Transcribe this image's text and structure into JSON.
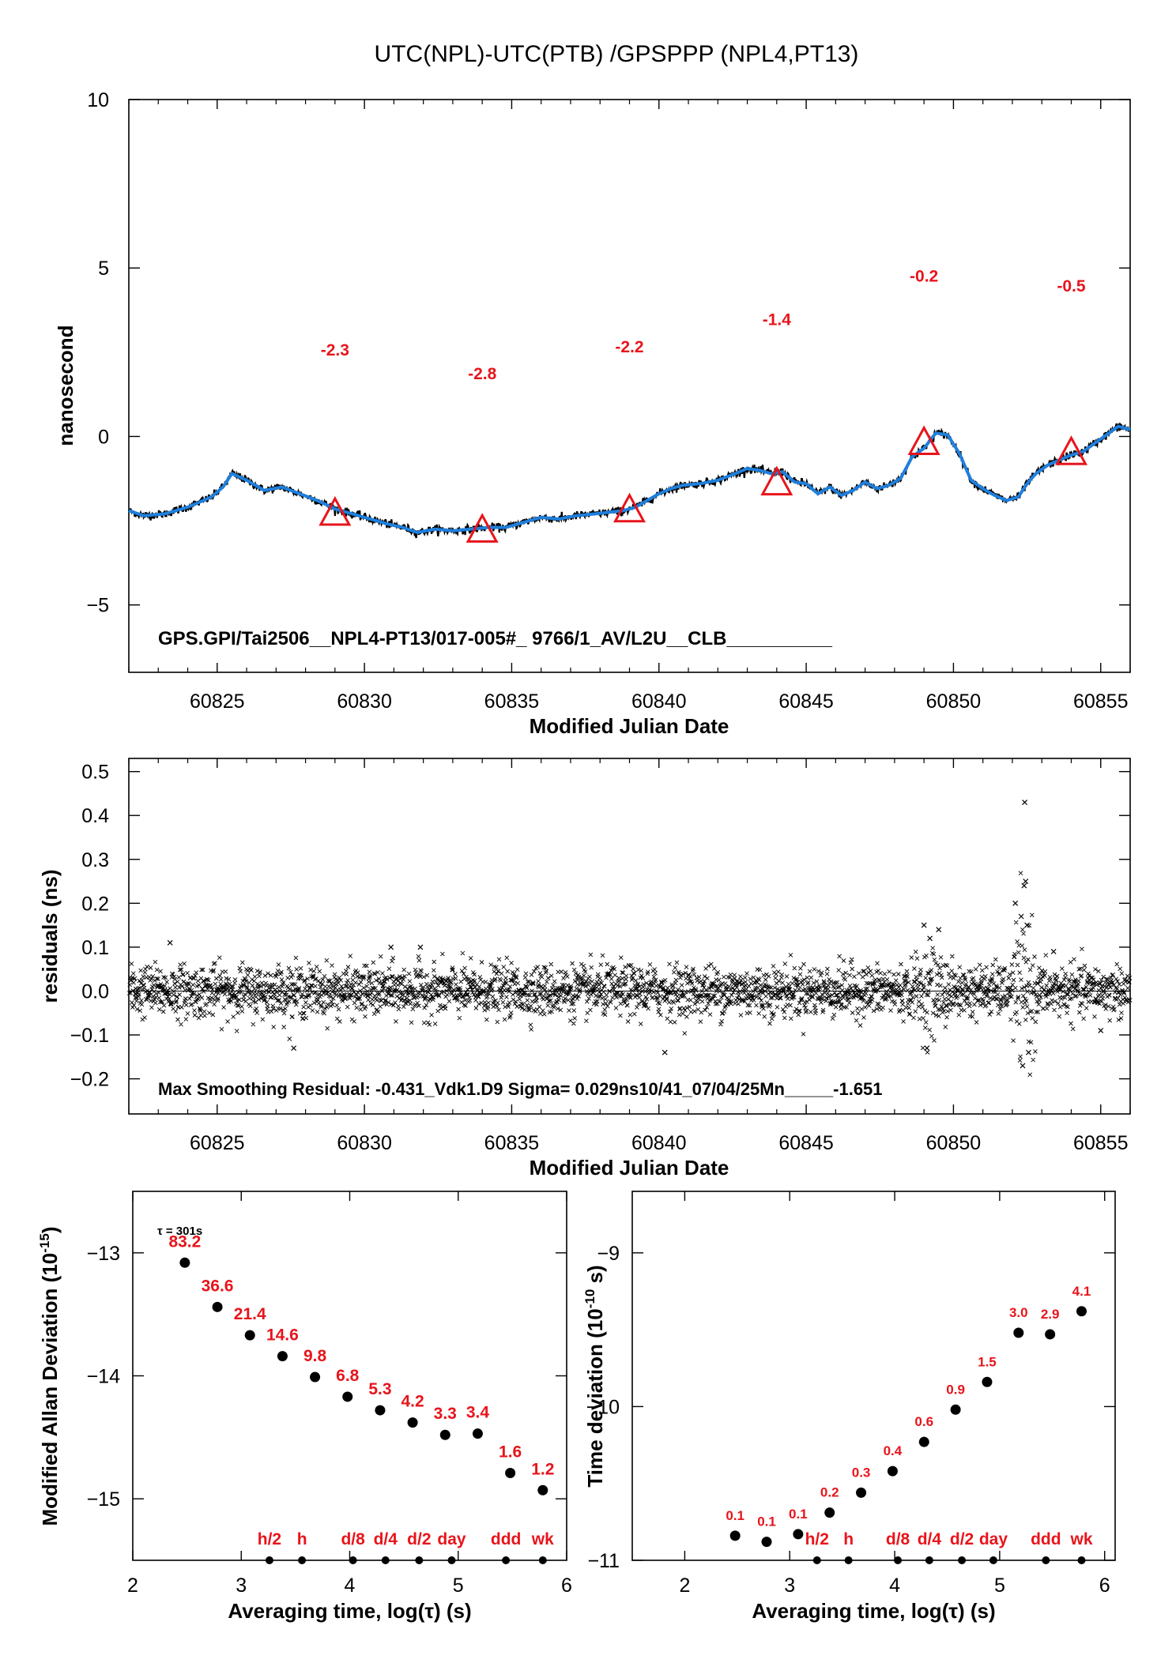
{
  "title": "UTC(NPL)-UTC(PTB)  /GPSPPP  (NPL4,PT13)",
  "chart_data": [
    {
      "id": "top",
      "type": "line",
      "xlabel": "Modified Julian Date",
      "ylabel": "nanosecond",
      "xlim": [
        60822,
        60856
      ],
      "ylim": [
        -7,
        10
      ],
      "xticks": [
        60825,
        60830,
        60835,
        60840,
        60845,
        60850,
        60855
      ],
      "yticks": [
        -5,
        0,
        5,
        10
      ],
      "ytick_labels": [
        "−5",
        "0",
        "5",
        "10"
      ],
      "series": [
        {
          "x": [
            60822.0,
            60822.5,
            60823.2,
            60824.0,
            60824.8,
            60825.2,
            60825.5,
            60826.0,
            60826.6,
            60827.2,
            60827.8,
            60828.4,
            60829.0,
            60829.6,
            60830.2,
            60830.8,
            60831.3,
            60831.8,
            60832.4,
            60833.0,
            60833.6,
            60834.2,
            60834.8,
            60835.4,
            60836.0,
            60836.6,
            60837.2,
            60837.8,
            60838.3,
            60838.8,
            60839.2,
            60839.6,
            60840.0,
            60840.4,
            60840.8,
            60841.4,
            60842.0,
            60842.6,
            60843.0,
            60843.4,
            60843.8,
            60844.2,
            60844.6,
            60845.0,
            60845.4,
            60845.8,
            60846.2,
            60846.6,
            60847.0,
            60847.4,
            60847.8,
            60848.2,
            60848.6,
            60849.0,
            60849.4,
            60849.8,
            60850.2,
            60850.6,
            60851.0,
            60851.4,
            60851.8,
            60852.2,
            60852.5,
            60852.8,
            60853.2,
            60853.6,
            60854.0,
            60854.4,
            60854.8,
            60855.2,
            60855.6,
            60856.0
          ],
          "y": [
            -2.2,
            -2.35,
            -2.3,
            -2.1,
            -1.8,
            -1.5,
            -1.1,
            -1.3,
            -1.6,
            -1.5,
            -1.7,
            -1.9,
            -2.15,
            -2.3,
            -2.45,
            -2.6,
            -2.7,
            -2.85,
            -2.75,
            -2.8,
            -2.75,
            -2.7,
            -2.7,
            -2.55,
            -2.4,
            -2.45,
            -2.35,
            -2.3,
            -2.25,
            -2.2,
            -2.1,
            -1.9,
            -1.7,
            -1.55,
            -1.45,
            -1.4,
            -1.3,
            -1.1,
            -0.95,
            -1.0,
            -1.1,
            -1.05,
            -1.35,
            -1.4,
            -1.7,
            -1.5,
            -1.75,
            -1.6,
            -1.35,
            -1.55,
            -1.45,
            -1.25,
            -0.6,
            -0.35,
            0.1,
            0.05,
            -0.5,
            -1.3,
            -1.55,
            -1.75,
            -1.9,
            -1.8,
            -1.4,
            -1.1,
            -0.85,
            -0.7,
            -0.55,
            -0.45,
            -0.2,
            0.05,
            0.3,
            0.2
          ]
        }
      ],
      "markers": {
        "x": [
          60829.0,
          60834.0,
          60839.0,
          60844.0,
          60849.0,
          60854.0
        ],
        "y": [
          -2.3,
          -2.8,
          -2.2,
          -1.4,
          -0.2,
          -0.5
        ],
        "labels": [
          "-2.3",
          "-2.8",
          "-2.2",
          "-1.4",
          "-0.2",
          "-0.5"
        ],
        "label_y": [
          2.4,
          1.7,
          2.5,
          3.3,
          4.6,
          4.3
        ]
      },
      "annotation": "GPS.GPI/Tai2506__NPL4-PT13/017-005#_  9766/1_AV/L2U__CLB__________"
    },
    {
      "id": "residuals",
      "type": "scatter",
      "xlabel": "Modified Julian Date",
      "ylabel": "residuals (ns)",
      "xlim": [
        60822,
        60856
      ],
      "ylim": [
        -0.28,
        0.53
      ],
      "xticks": [
        60825,
        60830,
        60835,
        60840,
        60845,
        60850,
        60855
      ],
      "yticks": [
        -0.2,
        -0.1,
        0.0,
        0.1,
        0.2,
        0.3,
        0.4,
        0.5
      ],
      "ytick_labels": [
        "−0.2",
        "−0.1",
        "0.0",
        "0.1",
        "0.2",
        "0.3",
        "0.4",
        "0.5"
      ],
      "noise_sigma": 0.029,
      "max_residual": -0.431,
      "outliers": [
        {
          "x": 60852.42,
          "y": 0.43
        },
        {
          "x": 60852.45,
          "y": 0.25
        },
        {
          "x": 60852.4,
          "y": 0.24
        },
        {
          "x": 60852.1,
          "y": 0.2
        },
        {
          "x": 60852.3,
          "y": 0.17
        },
        {
          "x": 60852.5,
          "y": 0.15
        },
        {
          "x": 60852.35,
          "y": -0.17
        },
        {
          "x": 60852.55,
          "y": -0.14
        },
        {
          "x": 60849.0,
          "y": 0.15
        },
        {
          "x": 60849.5,
          "y": 0.14
        },
        {
          "x": 60849.2,
          "y": 0.12
        },
        {
          "x": 60849.1,
          "y": -0.13
        },
        {
          "x": 60840.2,
          "y": -0.14
        },
        {
          "x": 60827.6,
          "y": -0.13
        },
        {
          "x": 60823.4,
          "y": 0.11
        },
        {
          "x": 60830.9,
          "y": 0.1
        },
        {
          "x": 60831.9,
          "y": 0.1
        },
        {
          "x": 60853.4,
          "y": 0.09
        },
        {
          "x": 60855.0,
          "y": -0.09
        }
      ],
      "annotation": "Max Smoothing Residual: -0.431_Vdk1.D9  Sigma= 0.029ns10/41_07/04/25Mn_____-1.651"
    },
    {
      "id": "mdev",
      "type": "scatter",
      "xlabel": "Averaging time, log(τ) (s)",
      "ylabel": "Modified Allan Deviation (10",
      "ylabel_sup": "-15",
      "ylabel_end": ")",
      "xlim": [
        2,
        6
      ],
      "ylim": [
        -15.5,
        -12.5
      ],
      "xticks": [
        2,
        3,
        4,
        5,
        6
      ],
      "yticks": [
        -13,
        -14,
        -15
      ],
      "ytick_labels": [
        "−13",
        "−14",
        "−15"
      ],
      "tau_note": "τ = 301s",
      "x": [
        2.48,
        2.78,
        3.08,
        3.38,
        3.68,
        3.98,
        4.28,
        4.58,
        4.88,
        5.18,
        5.48,
        5.78
      ],
      "y": [
        -13.08,
        -13.44,
        -13.67,
        -13.84,
        -14.01,
        -14.17,
        -14.28,
        -14.38,
        -14.48,
        -14.47,
        -14.79,
        -14.93
      ],
      "point_labels": [
        "83.2",
        "36.6",
        "21.4",
        "14.6",
        "9.8",
        "6.8",
        "5.3",
        "4.2",
        "3.3",
        "3.4",
        "1.6",
        "1.2"
      ],
      "interval_marks": {
        "x": [
          3.26,
          3.56,
          4.03,
          4.33,
          4.64,
          4.94,
          5.44,
          5.78
        ],
        "labels": [
          "h/2",
          "h",
          "d/8",
          "d/4",
          "d/2",
          "day",
          "ddd",
          "wk"
        ]
      }
    },
    {
      "id": "tdev",
      "type": "scatter",
      "xlabel": "Averaging time, log(τ) (s)",
      "ylabel": "Time deviation (10",
      "ylabel_sup": "-10",
      "ylabel_end": " s)",
      "xlim": [
        1.5,
        6.1
      ],
      "ylim": [
        -11,
        -8.6
      ],
      "xticks": [
        2,
        3,
        4,
        5,
        6
      ],
      "yticks": [
        -9,
        -10,
        -11
      ],
      "ytick_labels": [
        "−9",
        "−10",
        "−11"
      ],
      "x": [
        2.48,
        2.78,
        3.08,
        3.38,
        3.68,
        3.98,
        4.28,
        4.58,
        4.88,
        5.18,
        5.48,
        5.78
      ],
      "y": [
        -10.84,
        -10.88,
        -10.83,
        -10.69,
        -10.56,
        -10.42,
        -10.23,
        -10.02,
        -9.84,
        -9.52,
        -9.53,
        -9.38
      ],
      "point_labels": [
        "0.1",
        "0.1",
        "0.1",
        "0.2",
        "0.3",
        "0.4",
        "0.6",
        "0.9",
        "1.5",
        "3.0",
        "2.9",
        "4.1"
      ],
      "interval_marks": {
        "x": [
          3.26,
          3.56,
          4.03,
          4.33,
          4.64,
          4.94,
          5.44,
          5.78
        ],
        "labels": [
          "h/2",
          "h",
          "d/8",
          "d/4",
          "d/2",
          "day",
          "ddd",
          "wk"
        ]
      }
    }
  ],
  "colors": {
    "trace": "#1f7fdc",
    "trace_noise": "#000000",
    "marker": "#e8141b",
    "label": "#e8141b",
    "points": "#000000"
  }
}
